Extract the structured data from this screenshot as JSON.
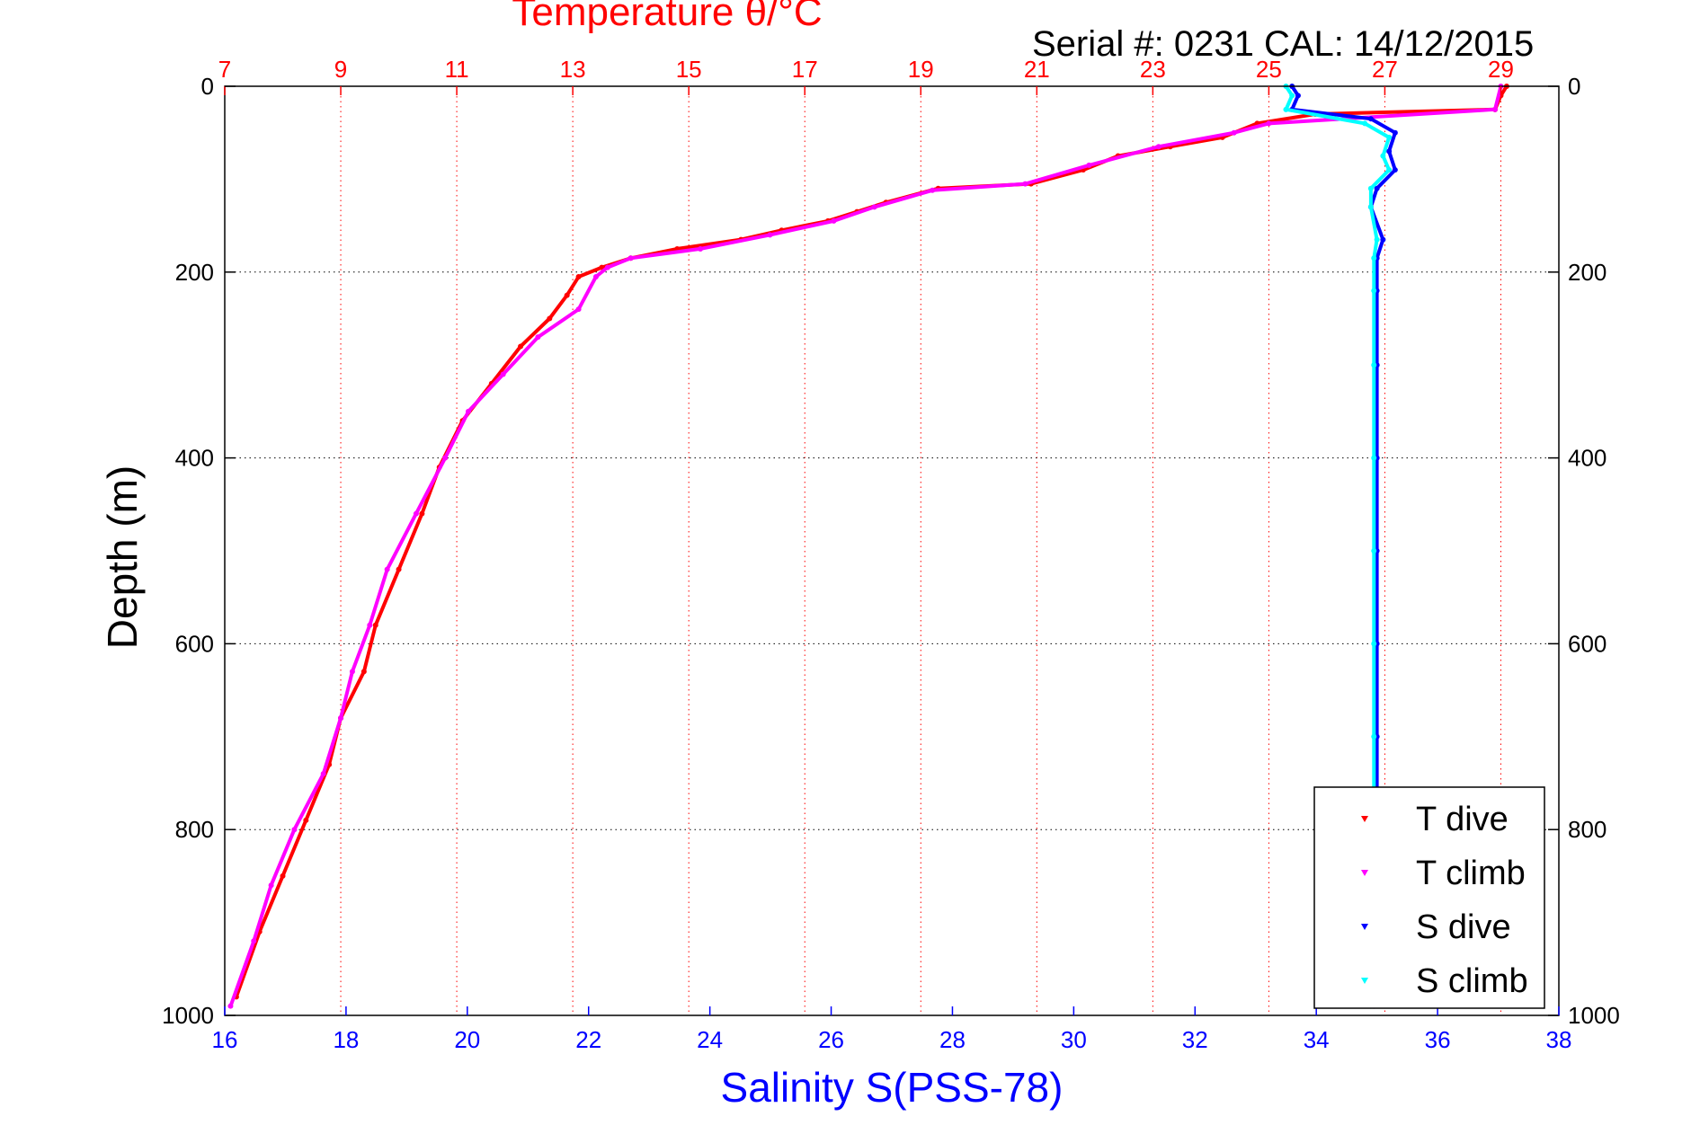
{
  "chart_data": {
    "type": "scatter",
    "title": "Temperature θ/°C",
    "subtitle": "Serial #: 0231  CAL: 14/12/2015",
    "xlabel": "Salinity S(PSS-78)",
    "ylabel": "Depth (m)",
    "x_top": {
      "label": "Temperature θ/°C",
      "range": [
        7,
        30
      ],
      "ticks": [
        7,
        9,
        11,
        13,
        15,
        17,
        19,
        21,
        23,
        25,
        27,
        29
      ]
    },
    "x_bottom": {
      "label": "Salinity S(PSS-78)",
      "range": [
        16,
        38
      ],
      "ticks": [
        16,
        18,
        20,
        22,
        24,
        26,
        28,
        30,
        32,
        34,
        36,
        38
      ]
    },
    "y": {
      "range": [
        0,
        1000
      ],
      "inverted": true,
      "ticks": [
        0,
        200,
        400,
        600,
        800,
        1000
      ]
    },
    "grid": true,
    "legend_position": "bottom-right",
    "colors": {
      "temperature_axis": "#ff0000",
      "salinity_axis": "#0000ff",
      "t_dive": "#ff0000",
      "t_climb": "#ff00ff",
      "s_dive": "#0000ff",
      "s_climb": "#00ffff"
    },
    "series": [
      {
        "name": "T dive",
        "axis": "temperature",
        "points": [
          [
            29.1,
            0
          ],
          [
            29.0,
            10
          ],
          [
            28.9,
            25
          ],
          [
            25.8,
            30
          ],
          [
            24.8,
            40
          ],
          [
            24.2,
            55
          ],
          [
            23.3,
            65
          ],
          [
            22.4,
            75
          ],
          [
            21.8,
            90
          ],
          [
            20.9,
            105
          ],
          [
            19.3,
            110
          ],
          [
            18.4,
            125
          ],
          [
            17.9,
            135
          ],
          [
            17.4,
            145
          ],
          [
            16.6,
            155
          ],
          [
            15.9,
            165
          ],
          [
            14.8,
            175
          ],
          [
            14.0,
            185
          ],
          [
            13.5,
            195
          ],
          [
            13.1,
            205
          ],
          [
            12.9,
            225
          ],
          [
            12.6,
            250
          ],
          [
            12.1,
            280
          ],
          [
            11.6,
            320
          ],
          [
            11.1,
            360
          ],
          [
            10.7,
            410
          ],
          [
            10.4,
            460
          ],
          [
            10.0,
            520
          ],
          [
            9.6,
            580
          ],
          [
            9.4,
            630
          ],
          [
            9.0,
            680
          ],
          [
            8.8,
            730
          ],
          [
            8.4,
            790
          ],
          [
            8.0,
            850
          ],
          [
            7.6,
            910
          ],
          [
            7.2,
            980
          ]
        ]
      },
      {
        "name": "T climb",
        "axis": "temperature",
        "points": [
          [
            29.0,
            0
          ],
          [
            28.9,
            25
          ],
          [
            25.0,
            40
          ],
          [
            24.4,
            50
          ],
          [
            23.1,
            65
          ],
          [
            21.9,
            85
          ],
          [
            20.8,
            105
          ],
          [
            19.2,
            112
          ],
          [
            18.2,
            130
          ],
          [
            17.5,
            145
          ],
          [
            16.4,
            160
          ],
          [
            15.2,
            175
          ],
          [
            14.0,
            185
          ],
          [
            13.6,
            195
          ],
          [
            13.4,
            205
          ],
          [
            13.1,
            240
          ],
          [
            12.4,
            270
          ],
          [
            11.8,
            310
          ],
          [
            11.2,
            350
          ],
          [
            10.8,
            400
          ],
          [
            10.3,
            460
          ],
          [
            9.8,
            520
          ],
          [
            9.5,
            580
          ],
          [
            9.2,
            630
          ],
          [
            9.0,
            680
          ],
          [
            8.7,
            740
          ],
          [
            8.2,
            800
          ],
          [
            7.8,
            860
          ],
          [
            7.5,
            920
          ],
          [
            7.1,
            990
          ]
        ]
      },
      {
        "name": "S dive",
        "axis": "salinity",
        "points": [
          [
            33.6,
            0
          ],
          [
            33.7,
            10
          ],
          [
            33.6,
            25
          ],
          [
            34.9,
            35
          ],
          [
            35.3,
            50
          ],
          [
            35.2,
            70
          ],
          [
            35.3,
            90
          ],
          [
            35.0,
            110
          ],
          [
            34.9,
            130
          ],
          [
            35.1,
            165
          ],
          [
            35.0,
            185
          ],
          [
            35.0,
            220
          ],
          [
            35.0,
            300
          ],
          [
            35.0,
            400
          ],
          [
            35.0,
            500
          ],
          [
            35.0,
            600
          ],
          [
            35.0,
            700
          ],
          [
            35.0,
            800
          ],
          [
            34.95,
            900
          ],
          [
            34.95,
            990
          ]
        ]
      },
      {
        "name": "S climb",
        "axis": "salinity",
        "points": [
          [
            33.5,
            0
          ],
          [
            33.6,
            10
          ],
          [
            33.5,
            25
          ],
          [
            34.8,
            40
          ],
          [
            35.2,
            55
          ],
          [
            35.1,
            75
          ],
          [
            35.2,
            90
          ],
          [
            34.9,
            110
          ],
          [
            34.9,
            130
          ],
          [
            35.0,
            165
          ],
          [
            34.95,
            185
          ],
          [
            34.95,
            220
          ],
          [
            34.95,
            300
          ],
          [
            34.95,
            400
          ],
          [
            34.95,
            500
          ],
          [
            34.95,
            600
          ],
          [
            34.95,
            700
          ],
          [
            34.95,
            800
          ],
          [
            34.9,
            900
          ],
          [
            34.9,
            990
          ]
        ]
      }
    ]
  }
}
